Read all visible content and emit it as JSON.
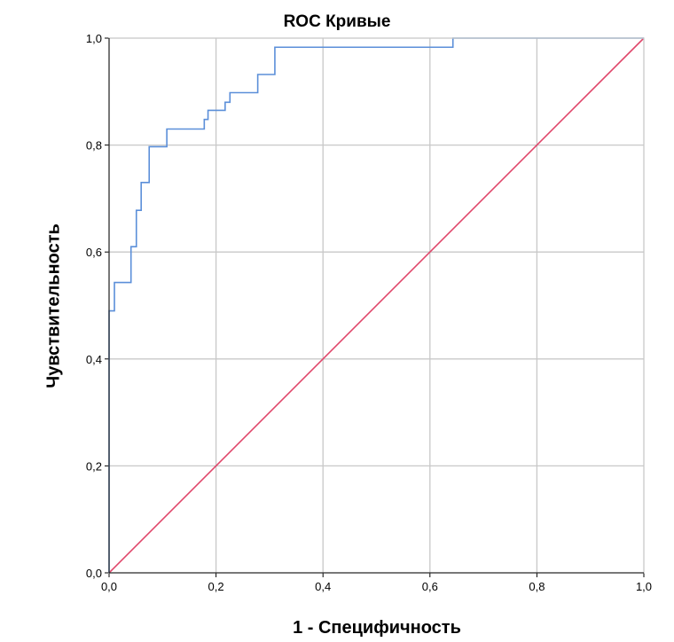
{
  "chart_data": {
    "type": "line",
    "title": "ROC Кривые",
    "xlabel": "1 - Специфичность",
    "ylabel": "Чувствительность",
    "xlim": [
      0,
      1
    ],
    "ylim": [
      0,
      1
    ],
    "xticks": [
      "0,0",
      "0,2",
      "0,4",
      "0,6",
      "0,8",
      "1,0"
    ],
    "yticks": [
      "0,0",
      "0,2",
      "0,4",
      "0,6",
      "0,8",
      "1,0"
    ],
    "grid": true,
    "legend": "none",
    "series": [
      {
        "color": "#5b8fd9",
        "points": [
          [
            0.0,
            0.0
          ],
          [
            0.0,
            0.49
          ],
          [
            0.01,
            0.49
          ],
          [
            0.01,
            0.543
          ],
          [
            0.041,
            0.543
          ],
          [
            0.041,
            0.61
          ],
          [
            0.051,
            0.61
          ],
          [
            0.051,
            0.678
          ],
          [
            0.06,
            0.678
          ],
          [
            0.06,
            0.73
          ],
          [
            0.075,
            0.73
          ],
          [
            0.075,
            0.797
          ],
          [
            0.108,
            0.797
          ],
          [
            0.108,
            0.83
          ],
          [
            0.178,
            0.83
          ],
          [
            0.178,
            0.848
          ],
          [
            0.185,
            0.848
          ],
          [
            0.185,
            0.865
          ],
          [
            0.217,
            0.865
          ],
          [
            0.217,
            0.88
          ],
          [
            0.226,
            0.88
          ],
          [
            0.226,
            0.898
          ],
          [
            0.278,
            0.898
          ],
          [
            0.278,
            0.932
          ],
          [
            0.31,
            0.932
          ],
          [
            0.31,
            0.983
          ],
          [
            0.643,
            0.983
          ],
          [
            0.643,
            1.0
          ],
          [
            1.0,
            1.0
          ]
        ]
      },
      {
        "color": "#e0476b",
        "points": [
          [
            0,
            0
          ],
          [
            1,
            1
          ]
        ]
      }
    ]
  }
}
